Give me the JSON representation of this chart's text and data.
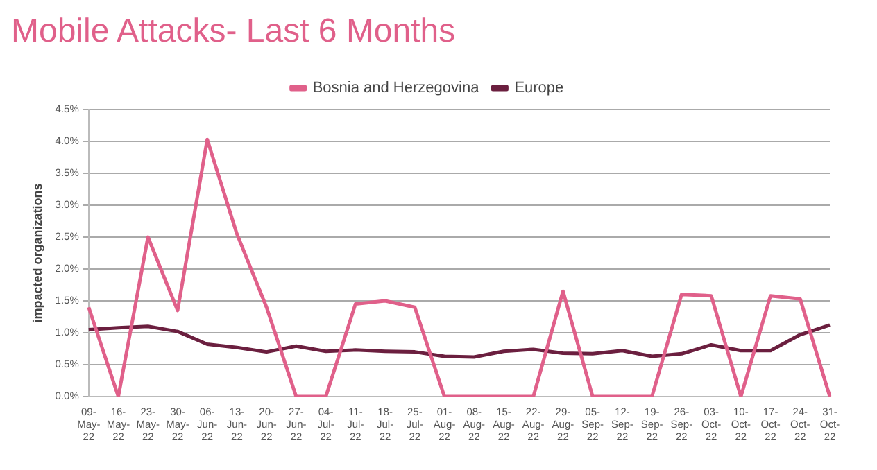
{
  "chart_data": {
    "type": "line",
    "title": "Mobile Attacks- Last 6 Months",
    "ylabel": "impacted organizations",
    "categories": [
      "09-May-22",
      "16-May-22",
      "23-May-22",
      "30-May-22",
      "06-Jun-22",
      "13-Jun-22",
      "20-Jun-22",
      "27-Jun-22",
      "04-Jul-22",
      "11-Jul-22",
      "18-Jul-22",
      "25-Jul-22",
      "01-Aug-22",
      "08-Aug-22",
      "15-Aug-22",
      "22-Aug-22",
      "29-Aug-22",
      "05-Sep-22",
      "12-Sep-22",
      "19-Sep-22",
      "26-Sep-22",
      "03-Oct-22",
      "10-Oct-22",
      "17-Oct-22",
      "24-Oct-22",
      "31-Oct-22"
    ],
    "series": [
      {
        "name": "Bosnia and Herzegovina",
        "color": "#e0608a",
        "values": [
          1.4,
          0,
          2.5,
          1.35,
          4.03,
          2.55,
          1.4,
          0,
          0,
          1.45,
          1.5,
          1.4,
          0,
          0,
          0,
          0,
          1.65,
          0,
          0,
          0,
          1.6,
          1.58,
          0,
          1.58,
          1.53,
          0
        ]
      },
      {
        "name": "Europe",
        "color": "#6b1f3f",
        "values": [
          1.05,
          1.08,
          1.1,
          1.02,
          0.82,
          0.77,
          0.7,
          0.79,
          0.71,
          0.73,
          0.71,
          0.7,
          0.63,
          0.62,
          0.71,
          0.74,
          0.68,
          0.67,
          0.72,
          0.63,
          0.67,
          0.81,
          0.72,
          0.72,
          0.97,
          1.12
        ]
      }
    ],
    "ylim": [
      0,
      4.5
    ],
    "yticks": [
      {
        "value": 0,
        "label": "0.0%"
      },
      {
        "value": 0.5,
        "label": "0.5%"
      },
      {
        "value": 1,
        "label": "1.0%"
      },
      {
        "value": 1.5,
        "label": "1.5%"
      },
      {
        "value": 2,
        "label": "2.0%"
      },
      {
        "value": 2.5,
        "label": "2.5%"
      },
      {
        "value": 3,
        "label": "3.0%"
      },
      {
        "value": 3.5,
        "label": "3.5%"
      },
      {
        "value": 4,
        "label": "4.0%"
      },
      {
        "value": 4.5,
        "label": "4.5%"
      }
    ],
    "grid": "y",
    "legend": "top",
    "marker": "none",
    "line_style": "solid"
  }
}
